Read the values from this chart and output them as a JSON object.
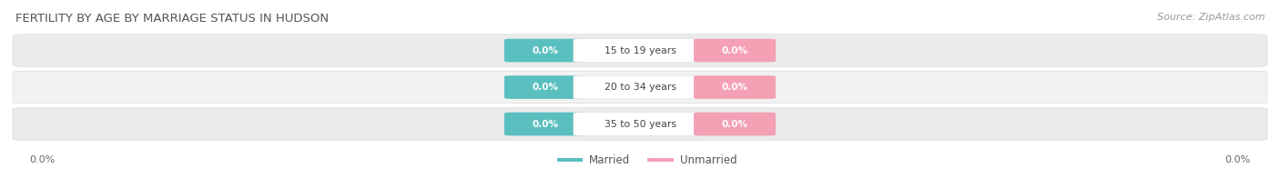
{
  "title": "FERTILITY BY AGE BY MARRIAGE STATUS IN HUDSON",
  "source": "Source: ZipAtlas.com",
  "age_groups": [
    "15 to 19 years",
    "20 to 34 years",
    "35 to 50 years"
  ],
  "married_color": "#5abfbf",
  "unmarried_color": "#f4a0b5",
  "row_colors": [
    "#ebebeb",
    "#f2f2f2",
    "#ebebeb"
  ],
  "legend_married": "Married",
  "legend_unmarried": "Unmarried",
  "fig_width": 14.06,
  "fig_height": 1.96,
  "background_color": "#ffffff",
  "title_color": "#555555",
  "source_color": "#999999",
  "axis_label": "0.0%",
  "pill_label": "0.0%"
}
